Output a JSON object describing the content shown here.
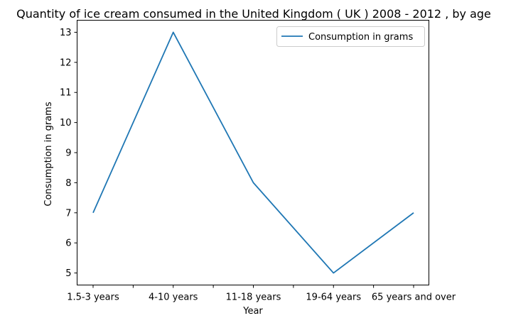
{
  "chart_data": {
    "type": "line",
    "title": "Quantity of ice cream consumed in the United Kingdom ( UK ) 2008 - 2012 , by age",
    "xlabel": "Year",
    "ylabel": "Consumption in grams",
    "categories": [
      "1.5-3 years",
      "4-10 years",
      "11-18 years",
      "19-64 years",
      "65 years and over"
    ],
    "series": [
      {
        "name": "Consumption in grams",
        "values": [
          7,
          13,
          8,
          5,
          7
        ],
        "color": "#1f77b4"
      }
    ],
    "ylim": [
      4.6,
      13.4
    ],
    "yticks": [
      5,
      6,
      7,
      8,
      9,
      10,
      11,
      12,
      13
    ],
    "grid": false,
    "legend": "top-right"
  }
}
